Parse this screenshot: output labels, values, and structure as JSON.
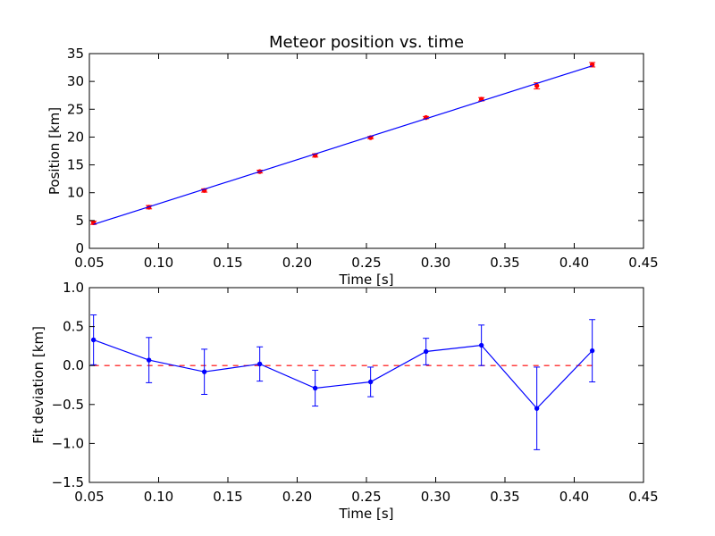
{
  "chart_data": [
    {
      "type": "scatter",
      "title": "Meteor position vs. time",
      "xlabel": "Time [s]",
      "ylabel": "Position [km]",
      "xlim": [
        0.05,
        0.45
      ],
      "ylim": [
        0,
        35
      ],
      "xticks": [
        "0.05",
        "0.10",
        "0.15",
        "0.20",
        "0.25",
        "0.30",
        "0.35",
        "0.40",
        "0.45"
      ],
      "xtick_values": [
        0.05,
        0.1,
        0.15,
        0.2,
        0.25,
        0.3,
        0.35,
        0.4,
        0.45
      ],
      "yticks": [
        "0",
        "5",
        "10",
        "15",
        "20",
        "25",
        "30",
        "35"
      ],
      "ytick_values": [
        0,
        5,
        10,
        15,
        20,
        25,
        30,
        35
      ],
      "grid": false,
      "series": [
        {
          "kind": "errorbar-points",
          "color": "#ff0000",
          "x": [
            0.053,
            0.093,
            0.133,
            0.173,
            0.213,
            0.253,
            0.293,
            0.333,
            0.373,
            0.413
          ],
          "y": [
            4.6,
            7.4,
            10.4,
            13.8,
            16.7,
            19.9,
            23.5,
            26.8,
            29.2,
            33.0
          ],
          "err": [
            0.3,
            0.3,
            0.3,
            0.25,
            0.3,
            0.2,
            0.2,
            0.3,
            0.55,
            0.4
          ]
        },
        {
          "kind": "fit-line",
          "color": "#0000ff",
          "x": [
            0.053,
            0.413
          ],
          "y": [
            4.3,
            32.8
          ]
        }
      ]
    },
    {
      "type": "line",
      "xlabel": "Time [s]",
      "ylabel": "Fit deviation [km]",
      "xlim": [
        0.05,
        0.45
      ],
      "ylim": [
        -1.5,
        1.0
      ],
      "xticks": [
        "0.05",
        "0.10",
        "0.15",
        "0.20",
        "0.25",
        "0.30",
        "0.35",
        "0.40",
        "0.45"
      ],
      "xtick_values": [
        0.05,
        0.1,
        0.15,
        0.2,
        0.25,
        0.3,
        0.35,
        0.4,
        0.45
      ],
      "yticks": [
        "−1.5",
        "−1.0",
        "−0.5",
        "0.0",
        "0.5",
        "1.0"
      ],
      "ytick_values": [
        -1.5,
        -1.0,
        -0.5,
        0.0,
        0.5,
        1.0
      ],
      "grid": false,
      "reference_line": {
        "y": 0,
        "color": "#ff0000",
        "style": "dashed"
      },
      "series": [
        {
          "kind": "errorbar-line",
          "color": "#0000ff",
          "x": [
            0.053,
            0.093,
            0.133,
            0.173,
            0.213,
            0.253,
            0.293,
            0.333,
            0.373,
            0.413
          ],
          "y": [
            0.33,
            0.07,
            -0.08,
            0.02,
            -0.29,
            -0.21,
            0.18,
            0.26,
            -0.55,
            0.19
          ],
          "err": [
            0.32,
            0.29,
            0.29,
            0.22,
            0.23,
            0.19,
            0.17,
            0.26,
            0.53,
            0.4
          ]
        }
      ]
    }
  ]
}
